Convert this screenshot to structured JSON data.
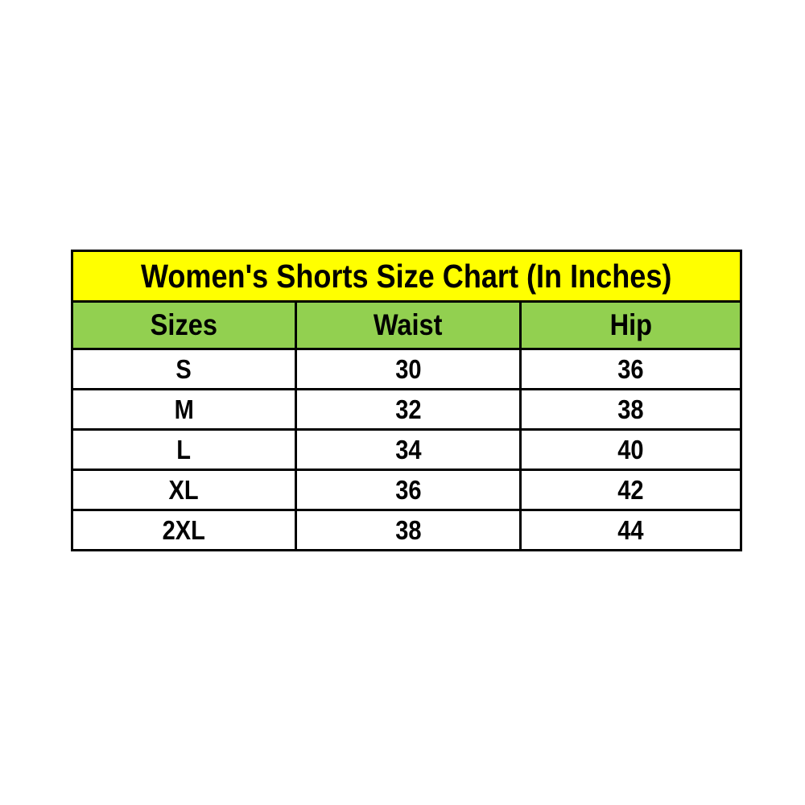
{
  "page": {
    "background": "#FFFFFF"
  },
  "table": {
    "title": "Women's Shorts Size Chart (In Inches)",
    "columns": [
      "Sizes",
      "Waist",
      "Hip"
    ],
    "rows": [
      {
        "size": "S",
        "waist": "30",
        "hip": "36"
      },
      {
        "size": "M",
        "waist": "32",
        "hip": "38"
      },
      {
        "size": "L",
        "waist": "34",
        "hip": "40"
      },
      {
        "size": "XL",
        "waist": "36",
        "hip": "42"
      },
      {
        "size": "2XL",
        "waist": "38",
        "hip": "44"
      }
    ],
    "colors": {
      "title_bg": "#FFFF00",
      "header_bg": "#92D050",
      "row_bg": "#FFFFFF",
      "border": "#000000",
      "text": "#000000"
    }
  },
  "chart_data": {
    "type": "table",
    "title": "Women's Shorts Size Chart (In Inches)",
    "columns": [
      "Sizes",
      "Waist",
      "Hip"
    ],
    "rows": [
      [
        "S",
        30,
        36
      ],
      [
        "M",
        32,
        38
      ],
      [
        "L",
        34,
        40
      ],
      [
        "XL",
        36,
        42
      ],
      [
        "2XL",
        38,
        44
      ]
    ],
    "units": "inches",
    "layout": {
      "title_bg": "#FFFF00",
      "header_bg": "#92D050",
      "grid": true
    }
  }
}
